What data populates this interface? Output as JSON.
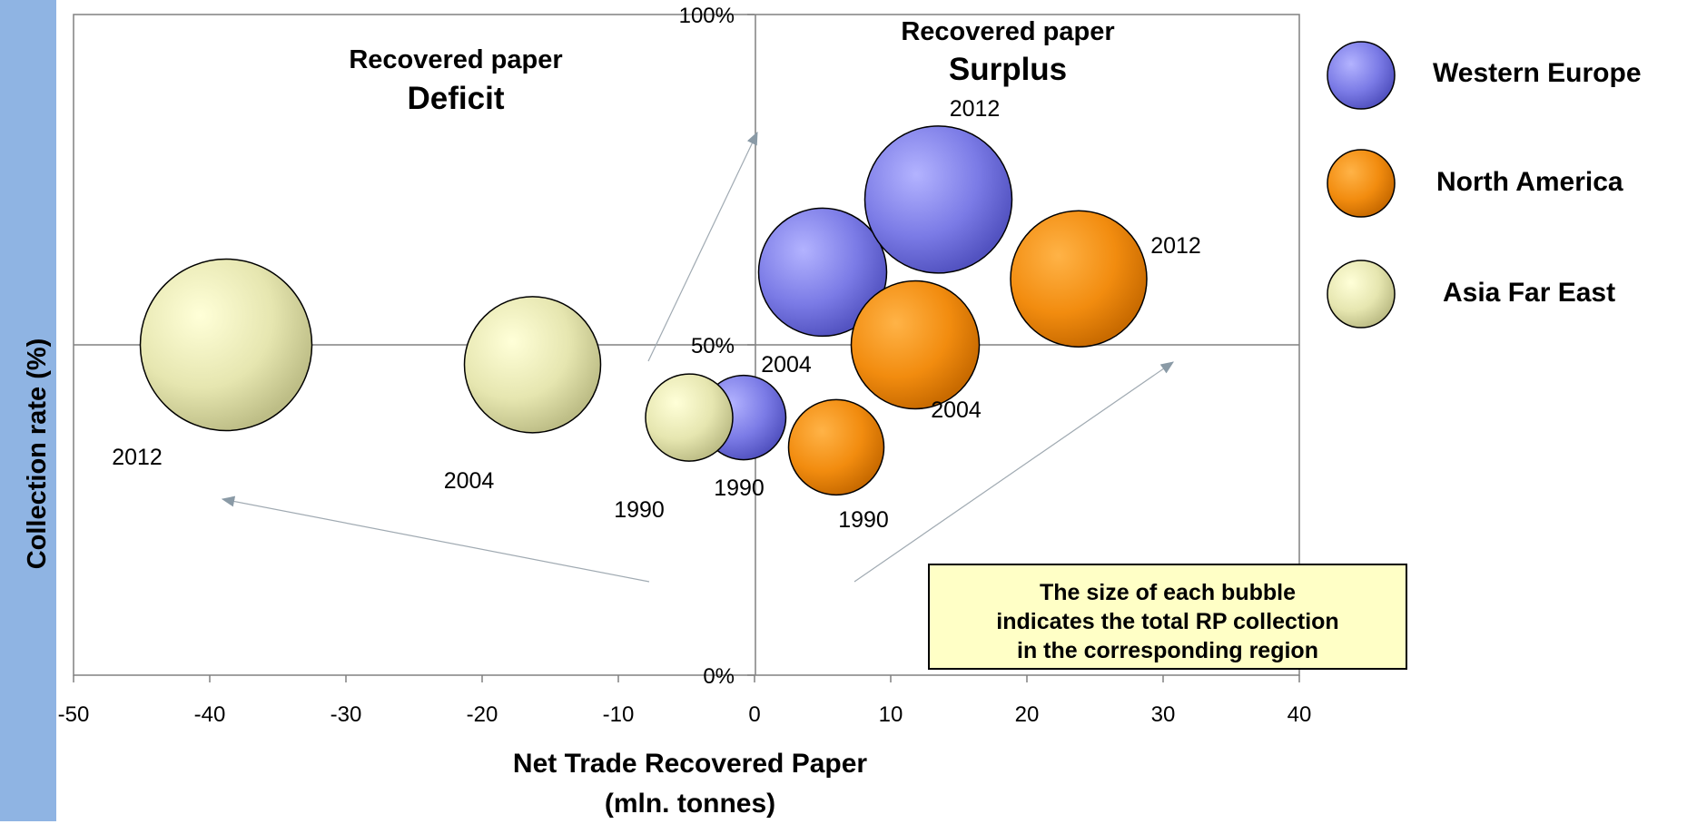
{
  "chart_data": {
    "type": "bubble",
    "xlabel": "Net Trade Recovered Paper",
    "xlabel_unit": "(mln. tonnes)",
    "ylabel": "Collection rate (%)",
    "xlim": [
      -50,
      40
    ],
    "ylim": [
      0,
      100
    ],
    "xticks": [
      "-50",
      "-40",
      "-30",
      "-20",
      "-10",
      "0",
      "10",
      "20",
      "30",
      "40"
    ],
    "yticks": [
      "0%",
      "50%",
      "100%"
    ],
    "grid": false,
    "legend_position": "right",
    "quadrants": {
      "deficit": {
        "line1": "Recovered paper",
        "line2": "Deficit"
      },
      "surplus": {
        "line1": "Recovered paper",
        "line2": "Surplus"
      }
    },
    "note": [
      "The size of each bubble",
      "indicates the total RP collection",
      "in the corresponding region"
    ],
    "series": [
      {
        "name": "Western Europe",
        "color": "#7777dd",
        "points": [
          {
            "label": "1990",
            "x": -0.8,
            "y": 39,
            "size": 31
          },
          {
            "label": "2004",
            "x": 5,
            "y": 61,
            "size": 47
          },
          {
            "label": "2012",
            "x": 13.5,
            "y": 72,
            "size": 54
          }
        ]
      },
      {
        "name": "North America",
        "color": "#f08a0c",
        "points": [
          {
            "label": "1990",
            "x": 6,
            "y": 34.5,
            "size": 35
          },
          {
            "label": "2004",
            "x": 11.8,
            "y": 50,
            "size": 47
          },
          {
            "label": "2012",
            "x": 23.8,
            "y": 60,
            "size": 50
          }
        ]
      },
      {
        "name": "Asia Far East",
        "color": "#dede9e",
        "points": [
          {
            "label": "1990",
            "x": -4.8,
            "y": 39,
            "size": 32
          },
          {
            "label": "2004",
            "x": -16.3,
            "y": 47,
            "size": 50
          },
          {
            "label": "2012",
            "x": -38.8,
            "y": 50,
            "size": 63
          }
        ]
      }
    ]
  }
}
